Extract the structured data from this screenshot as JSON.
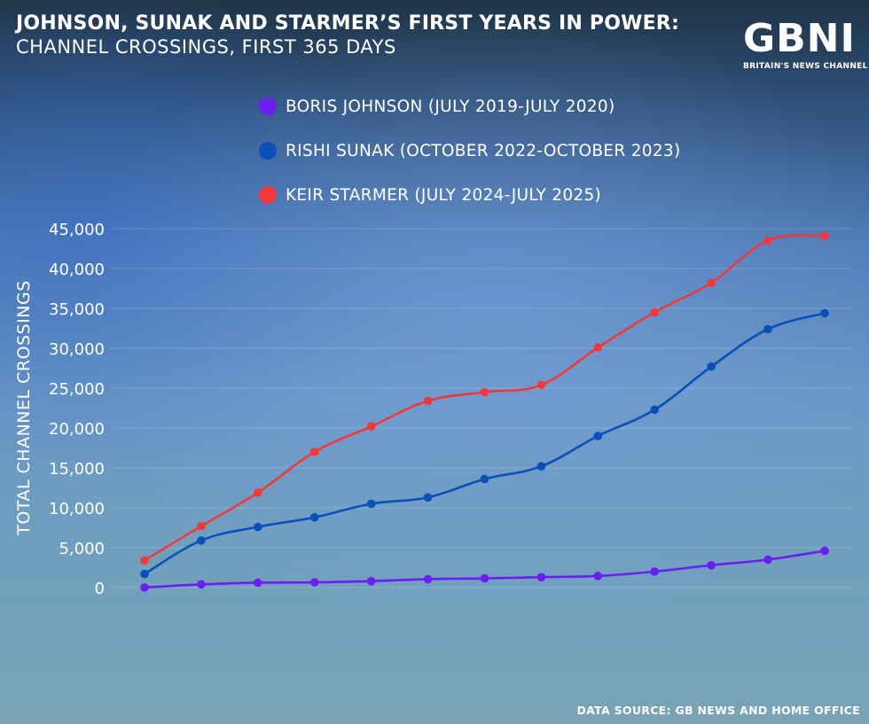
{
  "header": {
    "title": "JOHNSON, SUNAK AND STARMER’S FIRST YEARS IN POWER:",
    "subtitle": "CHANNEL CROSSINGS, FIRST 365 DAYS"
  },
  "logo": {
    "mark": "GBNI",
    "tagline": "BRITAIN'S NEWS CHANNEL"
  },
  "footer": {
    "source": "DATA SOURCE: GB NEWS AND HOME OFFICE"
  },
  "colors": {
    "johnson": "#6a1ff0",
    "sunak": "#0b4fb8",
    "starmer": "#f0393b",
    "gridline": "#ffffff"
  },
  "chart_data": {
    "type": "line",
    "title": "JOHNSON, SUNAK AND STARMER’S FIRST YEARS IN POWER: CHANNEL CROSSINGS, FIRST 365 DAYS",
    "xlabel": "",
    "ylabel": "TOTAL CHANNEL CROSSINGS",
    "ylim": [
      0,
      45000
    ],
    "yticks": [
      0,
      5000,
      10000,
      15000,
      20000,
      25000,
      30000,
      35000,
      40000,
      45000
    ],
    "ytick_labels": [
      "0",
      "5,000",
      "10,000",
      "15,000",
      "20,000",
      "25,000",
      "30,000",
      "35,000",
      "40,000",
      "45,000"
    ],
    "x": [
      1,
      2,
      3,
      4,
      5,
      6,
      7,
      8,
      9,
      10,
      11,
      12,
      13
    ],
    "grid": true,
    "legend_position": "top-center",
    "series": [
      {
        "key": "johnson",
        "name": "BORIS JOHNSON (JULY 2019-JULY 2020)",
        "values": [
          0,
          400,
          600,
          650,
          800,
          1050,
          1150,
          1300,
          1450,
          2000,
          2800,
          3500,
          4600
        ]
      },
      {
        "key": "sunak",
        "name": "RISHI SUNAK (OCTOBER 2022-OCTOBER 2023)",
        "values": [
          1700,
          5900,
          7600,
          8800,
          10500,
          11300,
          13600,
          15200,
          19000,
          22300,
          27700,
          32400,
          34400
        ]
      },
      {
        "key": "starmer",
        "name": "KEIR STARMER (JULY 2024-JULY 2025)",
        "values": [
          3400,
          7700,
          11900,
          17000,
          20200,
          23400,
          24500,
          25400,
          30100,
          34500,
          38200,
          43500,
          44100
        ]
      }
    ]
  }
}
